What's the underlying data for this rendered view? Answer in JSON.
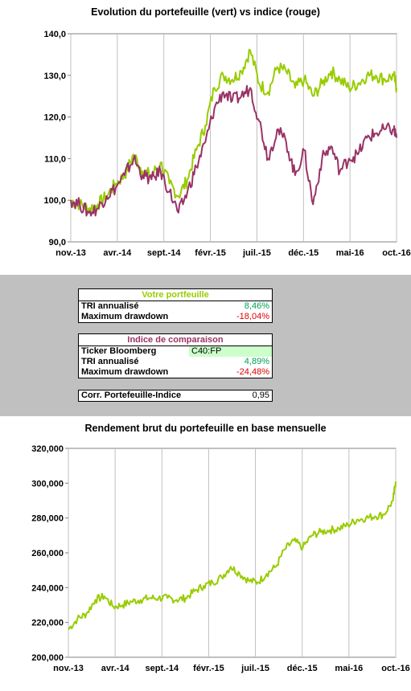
{
  "colors": {
    "portfolio": "#99cc00",
    "index": "#993366",
    "green_text": "#00a050",
    "red_text": "#e00000",
    "ticker_bg": "#ccffcc",
    "gray": "#c0c0c0"
  },
  "top_chart_title": "Evolution du portefeuille (vert) vs indice (rouge)",
  "bottom_chart_title": "Rendement brut du portefeuille en base mensuelle",
  "stats": {
    "portfolio_header": "Votre portfeuille",
    "tri_label": "TRI annualisé",
    "tri_value": "8,46%",
    "drawdown_label": "Maximum drawdown",
    "drawdown_value": "-18,04%",
    "index_header": "Indice de comparaison",
    "ticker_label": "Ticker Bloomberg",
    "ticker_value": "C40:FP",
    "index_tri_label": "TRI annualisé",
    "index_tri_value": "4,89%",
    "index_drawdown_label": "Maximum drawdown",
    "index_drawdown_value": "-24,48%",
    "corr_label": "Corr. Portefeuille-Indice",
    "corr_value": "0,95"
  },
  "chart_data": [
    {
      "type": "line",
      "title": "Evolution du portefeuille (vert) vs indice (rouge)",
      "x_ticks": [
        "nov.-13",
        "avr.-14",
        "sept.-14",
        "févr.-15",
        "juil.-15",
        "déc.-15",
        "mai-16",
        "oct.-16"
      ],
      "y_ticks": [
        "90,0",
        "100,0",
        "110,0",
        "120,0",
        "130,0",
        "140,0"
      ],
      "ylim": [
        90,
        140
      ],
      "x_months": [
        0,
        1,
        2,
        3,
        4,
        5,
        6,
        7,
        8,
        9,
        10,
        11,
        12,
        13,
        14,
        15,
        16,
        17,
        18,
        19,
        20,
        21,
        22,
        23,
        24,
        25,
        26,
        27,
        28,
        29,
        30,
        31,
        32,
        33,
        34,
        35,
        36,
        36.3
      ],
      "series": [
        {
          "color": "#99cc00",
          "values": [
            100,
            99,
            98,
            99,
            101,
            104,
            106,
            111,
            107,
            106,
            109,
            104,
            101,
            105,
            112,
            118,
            127,
            130,
            129,
            131,
            136,
            128,
            126,
            132,
            131,
            127,
            129,
            125,
            128,
            131,
            129,
            127,
            128,
            130,
            130,
            129,
            130,
            127
          ]
        },
        {
          "color": "#993366",
          "values": [
            100,
            99,
            97,
            98,
            101,
            103,
            106,
            110,
            106,
            105,
            107,
            102,
            97,
            102,
            108,
            114,
            122,
            126,
            124,
            125,
            127,
            119,
            110,
            117,
            114,
            106,
            112,
            99,
            110,
            113,
            107,
            110,
            111,
            115,
            116,
            117,
            117,
            115
          ]
        }
      ]
    },
    {
      "type": "line",
      "title": "Rendement brut du portefeuille en base mensuelle",
      "x_ticks": [
        "nov.-13",
        "avr.-14",
        "sept.-14",
        "févr.-15",
        "juil.-15",
        "déc.-15",
        "mai-16",
        "oct.-16"
      ],
      "y_ticks": [
        "200,000",
        "220,000",
        "240,000",
        "260,000",
        "280,000",
        "300,000",
        "320,000"
      ],
      "ylim": [
        200,
        320
      ],
      "x_months": [
        0,
        1,
        2,
        3,
        4,
        5,
        6,
        7,
        8,
        9,
        10,
        11,
        12,
        13,
        14,
        15,
        16,
        17,
        18,
        19,
        20,
        21,
        22,
        23,
        24,
        25,
        26,
        27,
        28,
        29,
        30,
        31,
        32,
        33,
        34,
        35,
        36,
        36.3
      ],
      "series": [
        {
          "color": "#99cc00",
          "values": [
            216,
            222,
            225,
            233,
            235,
            229,
            230,
            232,
            233,
            234,
            234,
            234,
            233,
            234,
            238,
            241,
            243,
            246,
            252,
            248,
            244,
            243,
            248,
            252,
            262,
            267,
            263,
            270,
            272,
            273,
            274,
            276,
            279,
            280,
            281,
            282,
            290,
            301
          ]
        }
      ]
    }
  ]
}
